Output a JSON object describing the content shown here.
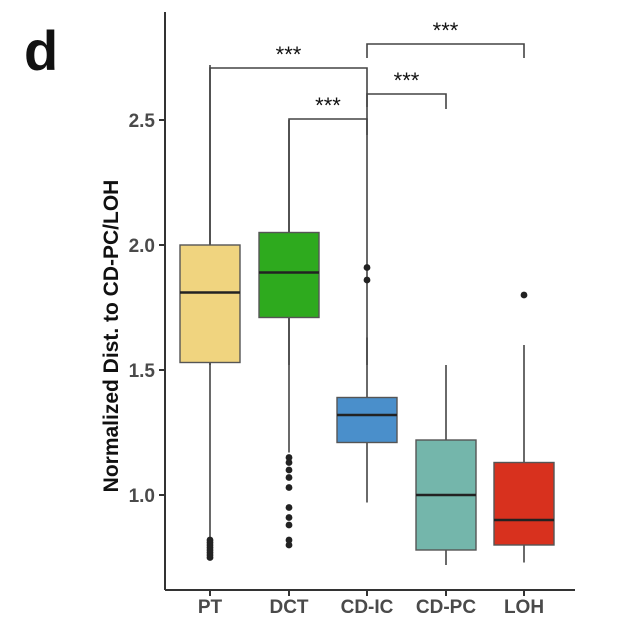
{
  "panel_label": "d",
  "chart_data": {
    "type": "box",
    "title": "",
    "xlabel": "",
    "ylabel": "Normalized Dist. to CD-PC/LOH",
    "ylim": [
      0.6,
      2.9
    ],
    "yticks": [
      1.0,
      1.5,
      2.0,
      2.5
    ],
    "ytick_labels": [
      "1.0",
      "1.5",
      "2.0",
      "2.5"
    ],
    "categories": [
      "PT",
      "DCT",
      "CD-IC",
      "CD-PC",
      "LOH"
    ],
    "boxes": [
      {
        "category": "PT",
        "color": "#F0D47F",
        "whisker_low": 0.75,
        "q1": 1.53,
        "median": 1.81,
        "q3": 2.0,
        "whisker_high": 2.72,
        "outliers": [
          0.75,
          0.76,
          0.77,
          0.78,
          0.79,
          0.8,
          0.81,
          0.82
        ]
      },
      {
        "category": "DCT",
        "color": "#2EAA1E",
        "whisker_low": 1.17,
        "q1": 1.71,
        "median": 1.89,
        "q3": 2.05,
        "whisker_high": 2.5,
        "outliers": [
          1.15,
          1.13,
          1.1,
          1.07,
          1.03,
          0.95,
          0.91,
          0.88,
          0.82,
          0.8
        ]
      },
      {
        "category": "CD-IC",
        "color": "#4A8FCB",
        "whisker_low": 0.97,
        "q1": 1.21,
        "median": 1.32,
        "q3": 1.39,
        "whisker_high": 1.63,
        "outliers": [
          1.91,
          1.86
        ]
      },
      {
        "category": "CD-PC",
        "color": "#74B6AB",
        "whisker_low": 0.72,
        "q1": 0.78,
        "median": 1.0,
        "q3": 1.22,
        "whisker_high": 1.52,
        "outliers": []
      },
      {
        "category": "LOH",
        "color": "#D8311E",
        "whisker_low": 0.73,
        "q1": 0.8,
        "median": 0.9,
        "q3": 1.13,
        "whisker_high": 1.6,
        "outliers": [
          1.8
        ]
      }
    ],
    "significance": [
      {
        "from": "PT",
        "to": "CD-IC",
        "label": "***"
      },
      {
        "from": "DCT",
        "to": "CD-IC",
        "label": "***"
      },
      {
        "from": "CD-IC",
        "to": "LOH",
        "label": "***"
      },
      {
        "from": "CD-IC",
        "to": "CD-PC",
        "label": "***"
      }
    ]
  }
}
